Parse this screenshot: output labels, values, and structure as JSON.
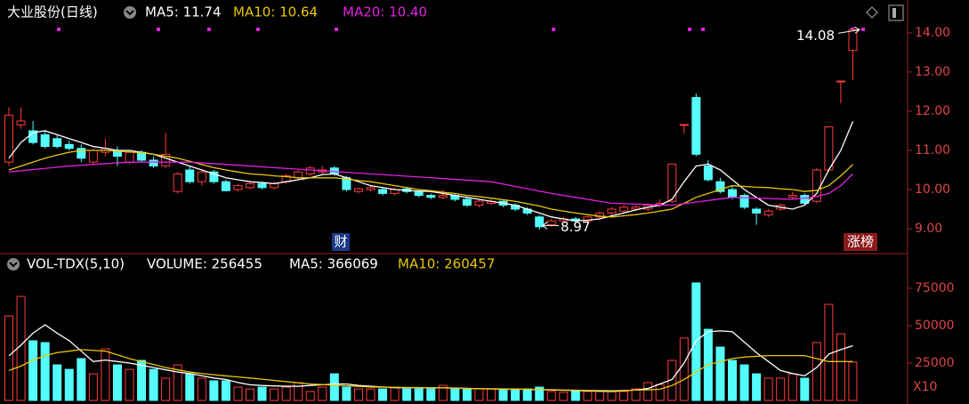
{
  "chart_data": [
    {
      "type": "candlestick",
      "title": "大业股份(日线)",
      "ylim": [
        8.41,
        14.27
      ],
      "yticks": [
        {
          "value": 14,
          "label": "14.00"
        },
        {
          "value": 13,
          "label": "13.00"
        },
        {
          "value": 12,
          "label": "12.00"
        },
        {
          "value": 11,
          "label": "11.00"
        },
        {
          "value": 10,
          "label": "10.00"
        },
        {
          "value": 9,
          "label": "9.00"
        }
      ],
      "up_color": "#ff3c3c",
      "down_color": "#54fcfc",
      "open": [
        10.7,
        11.65,
        11.5,
        11.4,
        11.3,
        11.15,
        11.05,
        10.7,
        10.95,
        11.0,
        10.7,
        10.95,
        10.75,
        10.6,
        9.95,
        10.5,
        10.2,
        10.45,
        10.2,
        10.0,
        10.05,
        10.15,
        10.05,
        10.2,
        10.3,
        10.4,
        10.45,
        10.55,
        10.3,
        9.95,
        10.0,
        10.0,
        9.9,
        10.02,
        9.95,
        9.85,
        9.8,
        9.85,
        9.75,
        9.6,
        9.65,
        9.7,
        9.6,
        9.5,
        9.3,
        9.1,
        9.2,
        9.25,
        9.2,
        9.3,
        9.4,
        9.45,
        9.5,
        9.5,
        9.6,
        9.7,
        11.66,
        12.35,
        10.6,
        10.2,
        10.0,
        9.85,
        9.5,
        9.35,
        9.5,
        9.8,
        9.85,
        9.7,
        10.5,
        12.77,
        13.55
      ],
      "high": [
        12.1,
        12.1,
        11.75,
        11.5,
        11.4,
        11.25,
        11.15,
        11.05,
        11.3,
        11.1,
        11.0,
        11.0,
        10.85,
        11.45,
        10.45,
        10.6,
        10.5,
        10.5,
        10.25,
        10.15,
        10.2,
        10.2,
        10.2,
        10.4,
        10.5,
        10.6,
        10.6,
        10.6,
        10.35,
        10.05,
        10.1,
        10.05,
        10.05,
        10.05,
        10.0,
        9.9,
        10.0,
        9.9,
        9.8,
        9.75,
        9.75,
        9.72,
        9.65,
        9.55,
        9.35,
        9.25,
        9.3,
        9.3,
        9.35,
        9.45,
        9.55,
        9.6,
        9.6,
        9.65,
        9.75,
        10.65,
        11.66,
        12.45,
        10.75,
        10.3,
        10.1,
        9.9,
        9.55,
        9.5,
        9.65,
        9.95,
        9.9,
        10.55,
        11.6,
        12.77,
        14.08
      ],
      "low": [
        10.6,
        11.55,
        11.15,
        11.05,
        11.05,
        11.0,
        10.7,
        10.65,
        10.85,
        10.6,
        10.65,
        10.7,
        10.55,
        10.55,
        9.9,
        10.15,
        10.1,
        10.15,
        9.95,
        9.95,
        10.0,
        10.0,
        10.0,
        10.15,
        10.25,
        10.35,
        10.4,
        10.35,
        9.95,
        9.9,
        9.95,
        9.85,
        9.85,
        9.9,
        9.8,
        9.75,
        9.75,
        9.7,
        9.55,
        9.55,
        9.6,
        9.55,
        9.45,
        9.35,
        8.97,
        9.05,
        9.15,
        9.15,
        9.15,
        9.25,
        9.35,
        9.4,
        9.45,
        9.45,
        9.55,
        9.65,
        11.43,
        10.85,
        10.2,
        9.9,
        9.75,
        9.5,
        9.1,
        9.3,
        9.45,
        9.75,
        9.6,
        9.65,
        10.45,
        12.2,
        12.8
      ],
      "close": [
        11.9,
        11.75,
        11.2,
        11.1,
        11.1,
        11.05,
        10.8,
        11.0,
        11.05,
        10.85,
        10.95,
        10.75,
        10.6,
        10.9,
        10.4,
        10.2,
        10.45,
        10.2,
        9.97,
        10.1,
        10.15,
        10.05,
        10.15,
        10.35,
        10.45,
        10.55,
        10.5,
        10.4,
        10.0,
        10.02,
        10.05,
        9.9,
        10.0,
        9.95,
        9.85,
        9.8,
        9.85,
        9.75,
        9.6,
        9.7,
        9.7,
        9.6,
        9.5,
        9.4,
        9.05,
        9.2,
        9.25,
        9.2,
        9.3,
        9.4,
        9.5,
        9.55,
        9.55,
        9.6,
        9.65,
        10.65,
        11.66,
        10.9,
        10.25,
        9.95,
        9.8,
        9.55,
        9.4,
        9.45,
        9.6,
        9.85,
        9.65,
        10.5,
        11.6,
        12.77,
        14.08
      ],
      "series": [
        {
          "name": "MA5: 11.74",
          "color": "#ffffff",
          "values": [
            10.8,
            11.2,
            11.45,
            11.5,
            11.4,
            11.3,
            11.2,
            11.1,
            11.05,
            11.0,
            11.0,
            10.95,
            10.9,
            10.8,
            10.7,
            10.6,
            10.5,
            10.4,
            10.3,
            10.25,
            10.2,
            10.18,
            10.15,
            10.2,
            10.25,
            10.3,
            10.38,
            10.4,
            10.3,
            10.2,
            10.1,
            10.05,
            10.0,
            9.98,
            9.96,
            9.95,
            9.9,
            9.85,
            9.8,
            9.75,
            9.7,
            9.65,
            9.6,
            9.5,
            9.4,
            9.3,
            9.25,
            9.2,
            9.22,
            9.25,
            9.33,
            9.4,
            9.48,
            9.55,
            9.6,
            9.75,
            10.2,
            10.6,
            10.65,
            10.5,
            10.25,
            10.0,
            9.8,
            9.6,
            9.55,
            9.5,
            9.6,
            9.9,
            10.5,
            11.0,
            11.74
          ]
        },
        {
          "name": "MA10: 10.64",
          "color": "#e8c800",
          "values": [
            10.5,
            10.6,
            10.7,
            10.8,
            10.88,
            10.95,
            11.0,
            11.0,
            11.0,
            10.98,
            10.96,
            10.94,
            10.9,
            10.85,
            10.8,
            10.72,
            10.64,
            10.56,
            10.5,
            10.45,
            10.4,
            10.38,
            10.35,
            10.33,
            10.3,
            10.3,
            10.3,
            10.3,
            10.27,
            10.23,
            10.2,
            10.15,
            10.1,
            10.05,
            10.0,
            9.97,
            9.93,
            9.9,
            9.85,
            9.82,
            9.78,
            9.74,
            9.7,
            9.64,
            9.58,
            9.5,
            9.45,
            9.4,
            9.36,
            9.32,
            9.3,
            9.33,
            9.36,
            9.4,
            9.45,
            9.5,
            9.65,
            9.8,
            9.9,
            10.0,
            10.1,
            10.08,
            10.06,
            10.05,
            10.02,
            10.0,
            9.95,
            9.98,
            10.1,
            10.35,
            10.64
          ]
        },
        {
          "name": "MA20: 10.40",
          "color": "#e020e0",
          "values": [
            10.45,
            10.48,
            10.51,
            10.54,
            10.57,
            10.6,
            10.62,
            10.64,
            10.66,
            10.68,
            10.7,
            10.7,
            10.7,
            10.7,
            10.7,
            10.7,
            10.68,
            10.66,
            10.64,
            10.62,
            10.6,
            10.58,
            10.56,
            10.54,
            10.52,
            10.5,
            10.48,
            10.46,
            10.44,
            10.42,
            10.4,
            10.38,
            10.36,
            10.34,
            10.32,
            10.3,
            10.28,
            10.26,
            10.24,
            10.22,
            10.2,
            10.14,
            10.08,
            10.02,
            9.96,
            9.9,
            9.85,
            9.8,
            9.75,
            9.7,
            9.65,
            9.64,
            9.63,
            9.62,
            9.61,
            9.6,
            9.64,
            9.68,
            9.72,
            9.76,
            9.8,
            9.79,
            9.78,
            9.77,
            9.76,
            9.75,
            9.78,
            9.82,
            9.9,
            10.1,
            10.4
          ]
        }
      ],
      "annotations": [
        {
          "label": "14.08",
          "value": 14.08
        },
        {
          "label": "8.97",
          "value": 8.97
        }
      ],
      "markers": [
        "财",
        "涨榜"
      ]
    },
    {
      "type": "bar",
      "title": "VOL-TDX(5,10)",
      "ylim": [
        0,
        83333
      ],
      "yticks": [
        25000,
        50000,
        75000
      ],
      "unit_label": "X10",
      "series": [
        {
          "name": "VOLUME: 256455",
          "values": [
            56500,
            69600,
            39900,
            38700,
            23800,
            20800,
            28000,
            17800,
            34500,
            23800,
            20800,
            26800,
            20800,
            14900,
            23800,
            17800,
            14900,
            13100,
            13100,
            8900,
            7700,
            8900,
            7700,
            8900,
            11900,
            6000,
            8900,
            17800,
            8900,
            7700,
            7700,
            7700,
            8900,
            7700,
            7700,
            7700,
            10100,
            7700,
            7700,
            7700,
            7700,
            7700,
            7700,
            7700,
            8900,
            6000,
            5400,
            6000,
            6000,
            6000,
            6000,
            6000,
            7700,
            11900,
            10700,
            26800,
            41700,
            78600,
            47600,
            35700,
            26800,
            23800,
            17800,
            14900,
            14900,
            17800,
            14900,
            38700,
            64300,
            44600,
            25646
          ]
        },
        {
          "name": "MA5: 366069",
          "color": "#ffffff",
          "values": [
            29800,
            37000,
            45000,
            50600,
            45000,
            40000,
            33000,
            26000,
            27000,
            26000,
            25000,
            23500,
            22000,
            20500,
            19000,
            18000,
            16500,
            15000,
            14000,
            12000,
            10500,
            10000,
            9700,
            9500,
            9500,
            10000,
            10500,
            11000,
            11000,
            10000,
            9500,
            9000,
            8500,
            8500,
            8500,
            8500,
            8500,
            8300,
            8100,
            7900,
            7700,
            7600,
            7500,
            7400,
            7200,
            7000,
            6800,
            6600,
            6400,
            6200,
            6000,
            6500,
            7000,
            8000,
            11000,
            14000,
            25000,
            40000,
            46000,
            46500,
            46000,
            39000,
            32000,
            26000,
            20000,
            18000,
            16500,
            22000,
            31000,
            34000,
            36607
          ]
        },
        {
          "name": "MA10: 260457",
          "color": "#e8c800",
          "values": [
            20000,
            23000,
            27000,
            30000,
            32000,
            33000,
            34000,
            33500,
            33000,
            30500,
            28000,
            26000,
            24000,
            22000,
            20500,
            19000,
            18000,
            17200,
            16400,
            15700,
            15000,
            14200,
            13400,
            12600,
            11800,
            11000,
            10600,
            10200,
            9800,
            9400,
            9000,
            8900,
            8800,
            8700,
            8600,
            8500,
            8400,
            8200,
            8000,
            7900,
            7800,
            7700,
            7600,
            7500,
            7300,
            7200,
            7000,
            6900,
            6700,
            6600,
            6500,
            6700,
            6900,
            7100,
            7500,
            10000,
            14000,
            19000,
            24000,
            26000,
            28000,
            29000,
            29500,
            30000,
            30000,
            30000,
            30000,
            28000,
            26000,
            26000,
            26046
          ]
        }
      ]
    }
  ]
}
